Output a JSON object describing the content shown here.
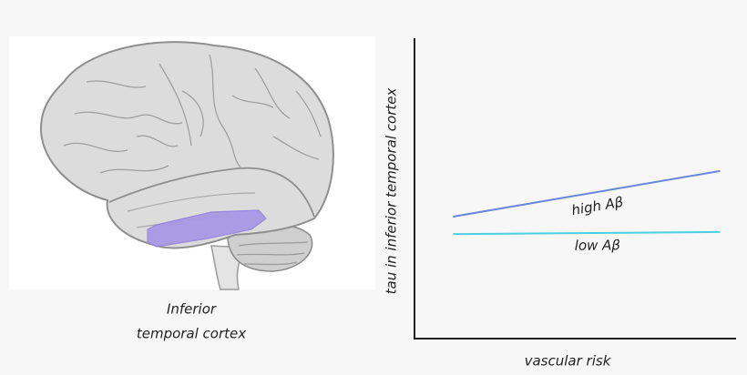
{
  "brain_panel": {
    "caption_lines": [
      "Inferior",
      "temporal cortex"
    ]
  },
  "chart_data": {
    "type": "line",
    "x_label": "vascular risk",
    "y_label": "tau in inferior temporal cortex",
    "x": [
      12,
      95
    ],
    "xlim": [
      0,
      100
    ],
    "ylim": [
      0,
      100
    ],
    "series": [
      {
        "name": "high Aβ",
        "color": "#6b86d8",
        "values": [
          40.6,
          55.8
        ]
      },
      {
        "name": "low Aβ",
        "color": "#4ccfe0",
        "values": [
          34.8,
          35.5
        ]
      }
    ]
  }
}
